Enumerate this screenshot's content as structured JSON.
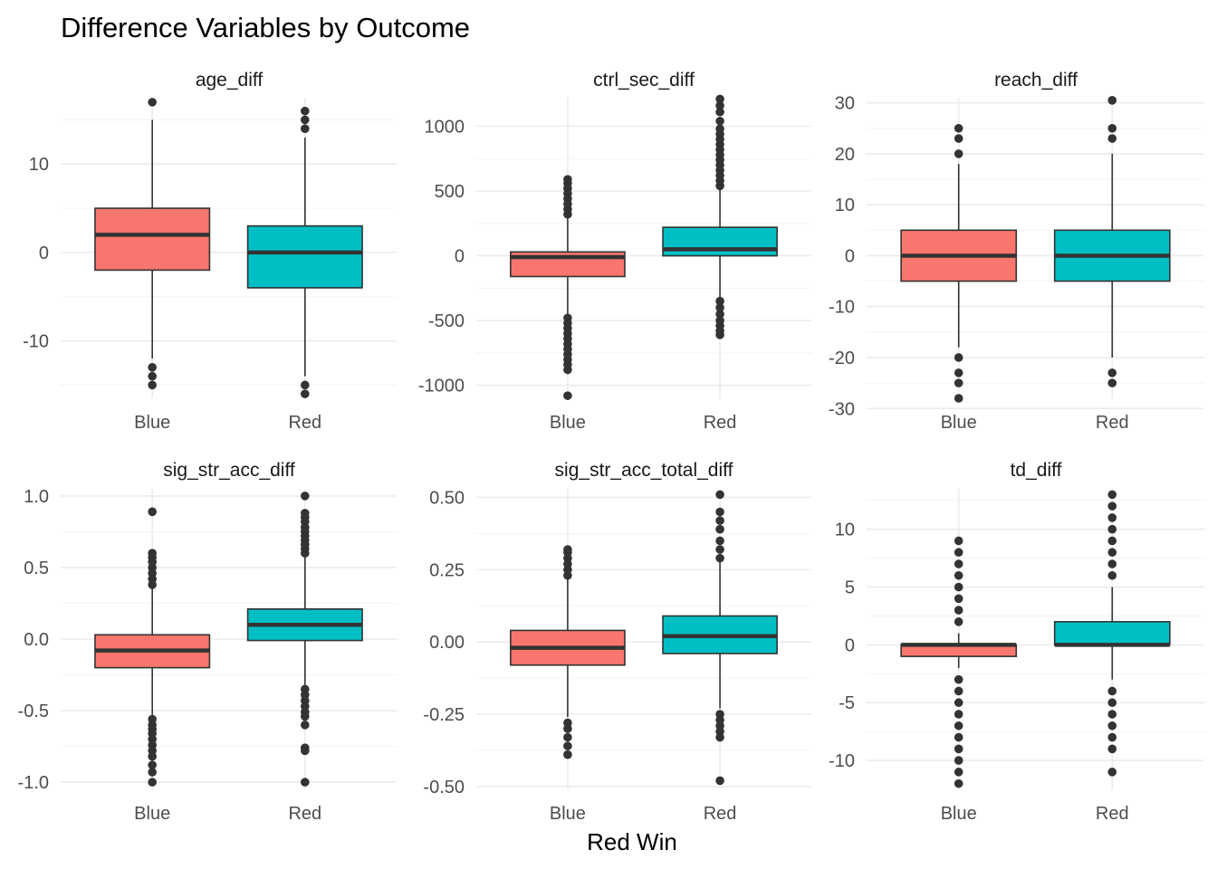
{
  "title": "Difference Variables by Outcome",
  "x_axis_title": "Red Win",
  "colors": {
    "Blue": "#F8766D",
    "Red": "#00BFC4",
    "outline": "#333333"
  },
  "chart_data": [
    {
      "type": "boxplot",
      "strip": "age_diff",
      "categories": [
        "Blue",
        "Red"
      ],
      "ylim": [
        -16.5,
        17.5
      ],
      "yticks": [
        -10,
        0,
        10
      ],
      "ytick_labels": [
        "-10",
        "0",
        "10"
      ],
      "boxes": [
        {
          "group": "Blue",
          "lower_whisker": -12,
          "q1": -2,
          "median": 2,
          "q3": 5,
          "upper_whisker": 15,
          "outliers": [
            -13,
            -14,
            -15,
            17
          ]
        },
        {
          "group": "Red",
          "lower_whisker": -14,
          "q1": -4,
          "median": 0,
          "q3": 3,
          "upper_whisker": 13,
          "outliers": [
            -15,
            -16,
            14,
            15,
            16
          ]
        }
      ]
    },
    {
      "type": "boxplot",
      "strip": "ctrl_sec_diff",
      "categories": [
        "Blue",
        "Red"
      ],
      "ylim": [
        -1100,
        1220
      ],
      "yticks": [
        -1000,
        -500,
        0,
        500,
        1000
      ],
      "ytick_labels": [
        "-1000",
        "-500",
        "0",
        "500",
        "1000"
      ],
      "boxes": [
        {
          "group": "Blue",
          "lower_whisker": -460,
          "q1": -160,
          "median": -10,
          "q3": 30,
          "upper_whisker": 300,
          "outliers": [
            -480,
            -520,
            -560,
            -600,
            -640,
            -680,
            -720,
            -760,
            -800,
            -840,
            -880,
            -1080,
            320,
            360,
            400,
            440,
            480,
            520,
            560,
            590
          ]
        },
        {
          "group": "Red",
          "lower_whisker": -320,
          "q1": 0,
          "median": 50,
          "q3": 220,
          "upper_whisker": 510,
          "outliers": [
            -350,
            -400,
            -450,
            -500,
            -540,
            -580,
            -610,
            540,
            580,
            620,
            660,
            700,
            740,
            780,
            820,
            860,
            900,
            940,
            980,
            1040,
            1110,
            1160,
            1210
          ]
        }
      ]
    },
    {
      "type": "boxplot",
      "strip": "reach_diff",
      "categories": [
        "Blue",
        "Red"
      ],
      "ylim": [
        -28,
        31
      ],
      "yticks": [
        -30,
        -20,
        -10,
        0,
        10,
        20,
        30
      ],
      "ytick_labels": [
        "-30",
        "-20",
        "-10",
        "0",
        "10",
        "20",
        "30"
      ],
      "boxes": [
        {
          "group": "Blue",
          "lower_whisker": -18,
          "q1": -5,
          "median": 0,
          "q3": 5,
          "upper_whisker": 18,
          "outliers": [
            -20,
            -23,
            -25,
            -28,
            20,
            23,
            25
          ]
        },
        {
          "group": "Red",
          "lower_whisker": -20,
          "q1": -5,
          "median": 0,
          "q3": 5,
          "upper_whisker": 20,
          "outliers": [
            -23,
            -25,
            23,
            25,
            30.5
          ]
        }
      ]
    },
    {
      "type": "boxplot",
      "strip": "sig_str_acc_diff",
      "categories": [
        "Blue",
        "Red"
      ],
      "ylim": [
        -1.05,
        1.05
      ],
      "yticks": [
        -1.0,
        -0.5,
        0.0,
        0.5,
        1.0
      ],
      "ytick_labels": [
        "-1.0",
        "-0.5",
        "0.0",
        "0.5",
        "1.0"
      ],
      "boxes": [
        {
          "group": "Blue",
          "lower_whisker": -0.54,
          "q1": -0.2,
          "median": -0.08,
          "q3": 0.03,
          "upper_whisker": 0.36,
          "outliers": [
            -0.56,
            -0.6,
            -0.63,
            -0.66,
            -0.7,
            -0.74,
            -0.78,
            -0.82,
            -0.88,
            -0.93,
            -1.0,
            0.38,
            0.42,
            0.46,
            0.5,
            0.54,
            0.57,
            0.6,
            0.89
          ]
        },
        {
          "group": "Red",
          "lower_whisker": -0.32,
          "q1": -0.01,
          "median": 0.1,
          "q3": 0.21,
          "upper_whisker": 0.58,
          "outliers": [
            -0.35,
            -0.39,
            -0.43,
            -0.47,
            -0.51,
            -0.54,
            -0.6,
            -0.76,
            -0.78,
            -1.0,
            0.6,
            0.63,
            0.66,
            0.69,
            0.72,
            0.75,
            0.78,
            0.82,
            0.85,
            0.88,
            1.0
          ]
        }
      ]
    },
    {
      "type": "boxplot",
      "strip": "sig_str_acc_total_diff",
      "categories": [
        "Blue",
        "Red"
      ],
      "ylim": [
        -0.51,
        0.53
      ],
      "yticks": [
        -0.5,
        -0.25,
        0.0,
        0.25,
        0.5
      ],
      "ytick_labels": [
        "-0.50",
        "-0.25",
        "0.00",
        "0.25",
        "0.50"
      ],
      "boxes": [
        {
          "group": "Blue",
          "lower_whisker": -0.26,
          "q1": -0.08,
          "median": -0.02,
          "q3": 0.04,
          "upper_whisker": 0.22,
          "outliers": [
            -0.28,
            -0.3,
            -0.33,
            -0.36,
            -0.39,
            0.23,
            0.25,
            0.27,
            0.29,
            0.31,
            0.32
          ]
        },
        {
          "group": "Red",
          "lower_whisker": -0.23,
          "q1": -0.04,
          "median": 0.02,
          "q3": 0.09,
          "upper_whisker": 0.28,
          "outliers": [
            -0.25,
            -0.27,
            -0.29,
            -0.31,
            -0.33,
            -0.48,
            0.29,
            0.32,
            0.35,
            0.39,
            0.42,
            0.45,
            0.51
          ]
        }
      ]
    },
    {
      "type": "boxplot",
      "strip": "td_diff",
      "categories": [
        "Blue",
        "Red"
      ],
      "ylim": [
        -12.5,
        13.5
      ],
      "yticks": [
        -10,
        -5,
        0,
        5,
        10
      ],
      "ytick_labels": [
        "-10",
        "-5",
        "0",
        "5",
        "10"
      ],
      "boxes": [
        {
          "group": "Blue",
          "lower_whisker": -2,
          "q1": -1,
          "median": 0,
          "q3": 0,
          "upper_whisker": 1,
          "outliers": [
            -3,
            -4,
            -5,
            -6,
            -7,
            -8,
            -9,
            -10,
            -11,
            -12,
            2,
            3,
            4,
            5,
            6,
            7,
            8,
            9
          ]
        },
        {
          "group": "Red",
          "lower_whisker": -3,
          "q1": 0,
          "median": 0,
          "q3": 2,
          "upper_whisker": 5,
          "outliers": [
            -4,
            -5,
            -6,
            -7,
            -8,
            -9,
            -11,
            6,
            7,
            8,
            9,
            10,
            11,
            12,
            13
          ]
        }
      ]
    }
  ]
}
